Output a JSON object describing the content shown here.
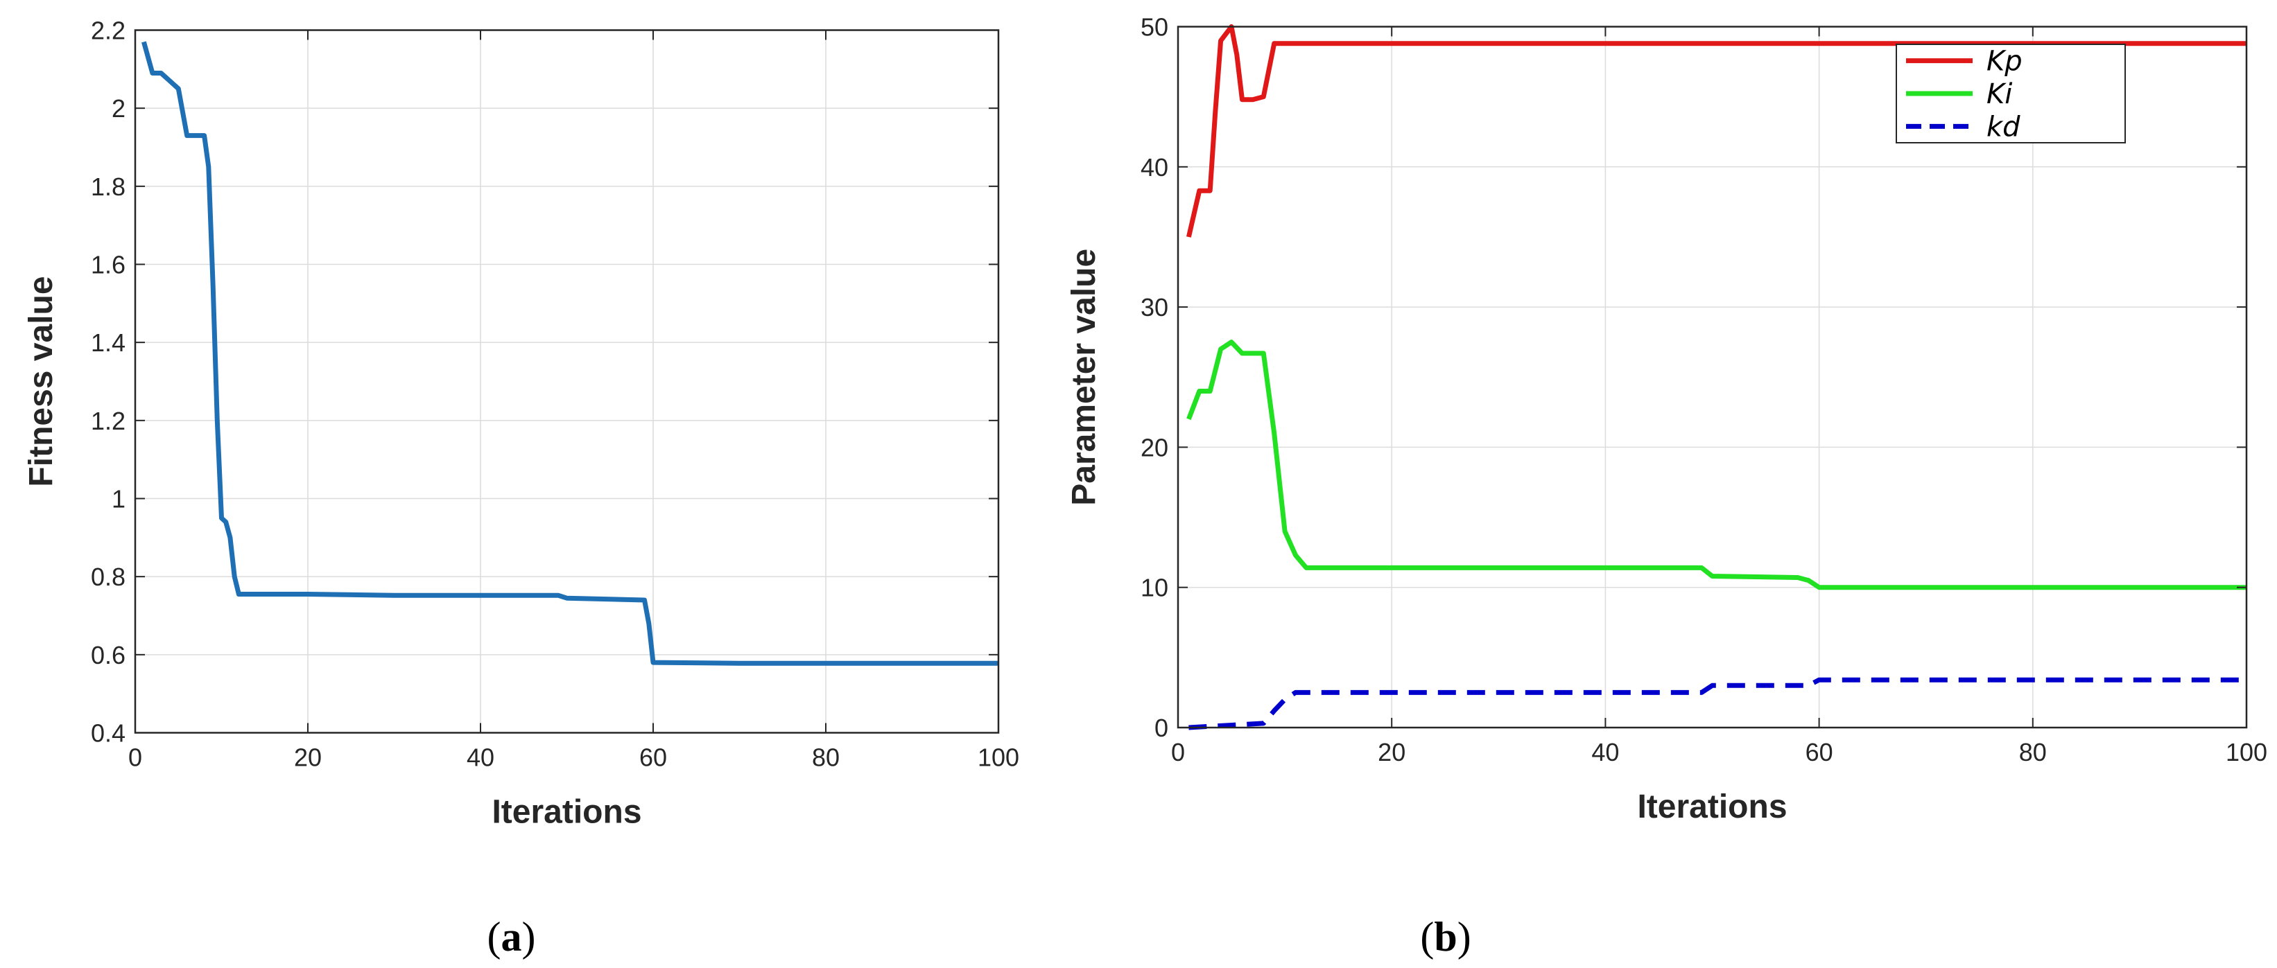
{
  "chart_data": [
    {
      "type": "line",
      "caption_letter": "a",
      "xlabel": "Iterations",
      "ylabel": "Fitness value",
      "xlim": [
        0,
        100
      ],
      "ylim": [
        0.4,
        2.2
      ],
      "xticks": [
        0,
        20,
        40,
        60,
        80,
        100
      ],
      "yticks": [
        0.4,
        0.6,
        0.8,
        1,
        1.2,
        1.4,
        1.6,
        1.8,
        2,
        2.2
      ],
      "grid": true,
      "series": [
        {
          "color": "#1f6fb4",
          "style": "solid",
          "points": [
            [
              1,
              2.17
            ],
            [
              2,
              2.09
            ],
            [
              3,
              2.09
            ],
            [
              4,
              2.07
            ],
            [
              5,
              2.05
            ],
            [
              6,
              1.93
            ],
            [
              7,
              1.93
            ],
            [
              8,
              1.93
            ],
            [
              8.5,
              1.85
            ],
            [
              9,
              1.55
            ],
            [
              9.5,
              1.2
            ],
            [
              10,
              0.95
            ],
            [
              10.5,
              0.94
            ],
            [
              11,
              0.9
            ],
            [
              11.5,
              0.8
            ],
            [
              12,
              0.755
            ],
            [
              20,
              0.755
            ],
            [
              30,
              0.752
            ],
            [
              49,
              0.752
            ],
            [
              50,
              0.745
            ],
            [
              59,
              0.74
            ],
            [
              59.5,
              0.68
            ],
            [
              60,
              0.58
            ],
            [
              70,
              0.578
            ],
            [
              100,
              0.578
            ]
          ]
        }
      ]
    },
    {
      "type": "line",
      "caption_letter": "b",
      "xlabel": "Iterations",
      "ylabel": "Parameter value",
      "xlim": [
        0,
        100
      ],
      "ylim": [
        0,
        50
      ],
      "xticks": [
        0,
        20,
        40,
        60,
        80,
        100
      ],
      "yticks": [
        0,
        10,
        20,
        30,
        40,
        50
      ],
      "grid": true,
      "legend_position": "top-right",
      "series": [
        {
          "name": "Kp",
          "color": "#e01818",
          "style": "solid",
          "points": [
            [
              1,
              35
            ],
            [
              2,
              38.3
            ],
            [
              3,
              38.3
            ],
            [
              3.5,
              44
            ],
            [
              4,
              49
            ],
            [
              5,
              50
            ],
            [
              5.5,
              48
            ],
            [
              6,
              44.8
            ],
            [
              7,
              44.8
            ],
            [
              8,
              45
            ],
            [
              9,
              48.8
            ],
            [
              10,
              48.8
            ],
            [
              100,
              48.8
            ]
          ]
        },
        {
          "name": "Ki",
          "color": "#22e022",
          "style": "solid",
          "points": [
            [
              1,
              22
            ],
            [
              2,
              24
            ],
            [
              3,
              24
            ],
            [
              4,
              27
            ],
            [
              5,
              27.5
            ],
            [
              6,
              26.7
            ],
            [
              7,
              26.7
            ],
            [
              8,
              26.7
            ],
            [
              9,
              21
            ],
            [
              10,
              14
            ],
            [
              11,
              12.3
            ],
            [
              12,
              11.4
            ],
            [
              20,
              11.4
            ],
            [
              49,
              11.4
            ],
            [
              50,
              10.8
            ],
            [
              58,
              10.7
            ],
            [
              59,
              10.5
            ],
            [
              60,
              10
            ],
            [
              100,
              10
            ]
          ]
        },
        {
          "name": "kd",
          "color": "#0000cc",
          "style": "dashed",
          "points": [
            [
              1,
              0
            ],
            [
              8,
              0.3
            ],
            [
              9,
              1.2
            ],
            [
              10,
              2
            ],
            [
              11,
              2.5
            ],
            [
              12,
              2.5
            ],
            [
              49,
              2.5
            ],
            [
              50,
              3
            ],
            [
              59,
              3
            ],
            [
              60,
              3.4
            ],
            [
              100,
              3.4
            ]
          ]
        }
      ]
    }
  ]
}
